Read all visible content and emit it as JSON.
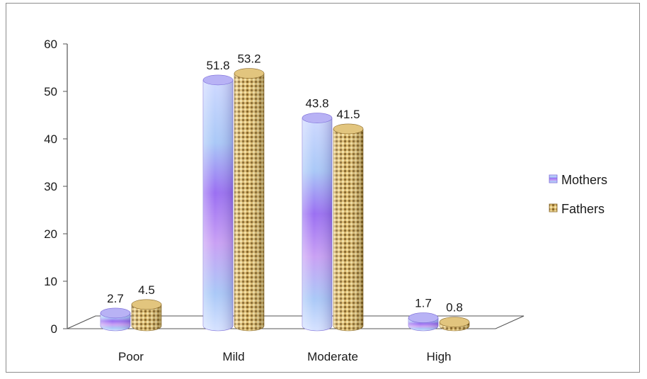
{
  "chart_data": {
    "type": "bar",
    "title": "",
    "xlabel": "",
    "ylabel": "",
    "categories": [
      "Poor",
      "Mild",
      "Moderate",
      "High"
    ],
    "series": [
      {
        "name": "Mothers",
        "values": [
          2.7,
          51.8,
          43.8,
          1.7
        ]
      },
      {
        "name": "Fathers",
        "values": [
          4.5,
          53.2,
          41.5,
          0.8
        ]
      }
    ],
    "yticks": [
      "0",
      "10",
      "20",
      "30",
      "40",
      "50",
      "60"
    ],
    "data_labels": [
      [
        "2.7",
        "51.8",
        "43.8",
        "1.7"
      ],
      [
        "4.5",
        "53.2",
        "41.5",
        "0.8"
      ]
    ],
    "ylim": [
      0,
      60
    ],
    "grid": false,
    "legend_position": "right",
    "style": "3d-cylinder",
    "colors": {
      "mothers": "#9a8cf0",
      "fathers": "#c9a45a"
    }
  }
}
